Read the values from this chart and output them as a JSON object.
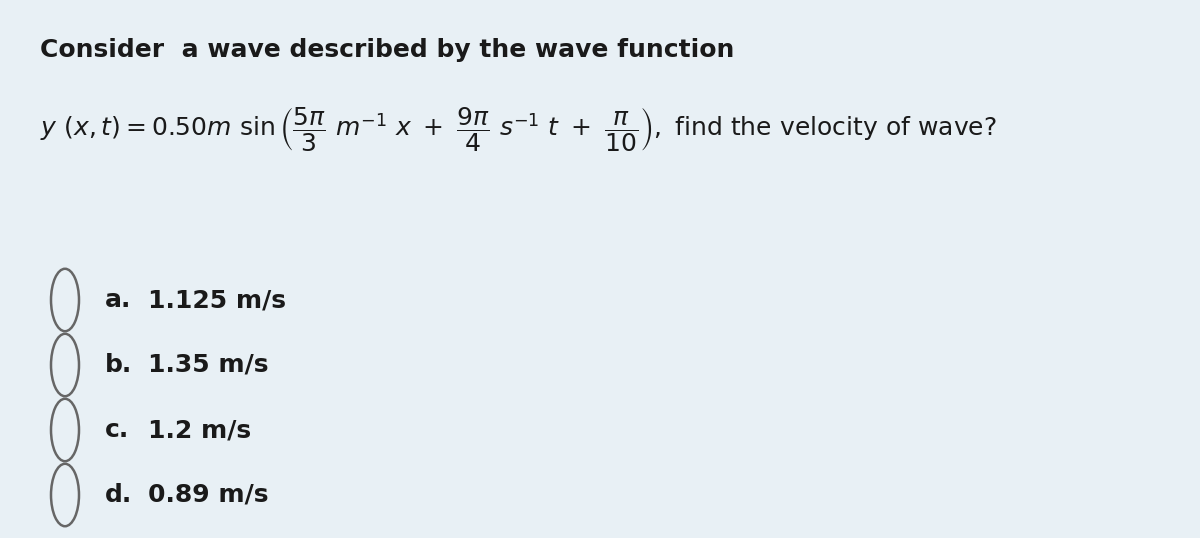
{
  "background_color": "#e8f0f5",
  "title_text": "Consider  a wave described by the wave function",
  "title_fontsize": 18,
  "equation_fontsize": 18,
  "options": [
    {
      "label": "a.",
      "text": "1.125 m/s"
    },
    {
      "label": "b.",
      "text": "1.35 m/s"
    },
    {
      "label": "c.",
      "text": "1.2 m/s"
    },
    {
      "label": "d.",
      "text": "0.89 m/s"
    }
  ],
  "option_fontsize": 18,
  "text_color": "#1a1a1a",
  "circle_color": "#666666",
  "fig_width": 12.0,
  "fig_height": 5.38
}
